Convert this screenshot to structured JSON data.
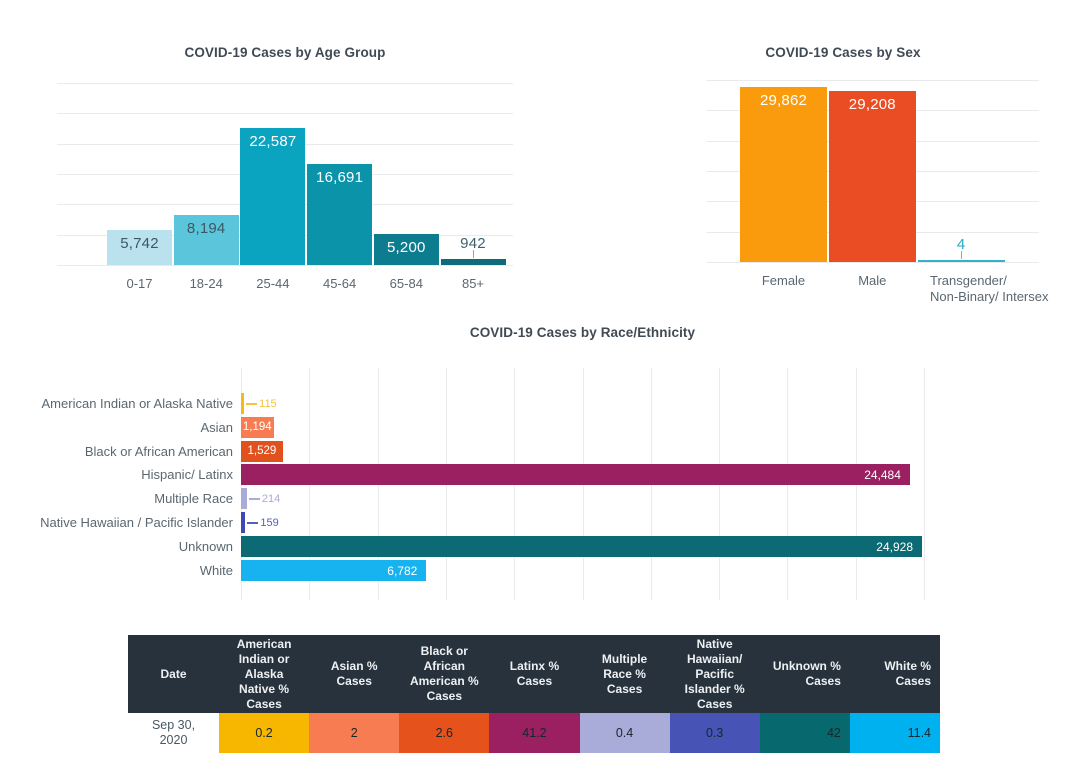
{
  "page_background": "#ffffff",
  "chart_data": [
    {
      "id": "age",
      "type": "bar",
      "orientation": "vertical",
      "title": "COVID-19 Cases by Age Group",
      "categories": [
        "0-17",
        "18-24",
        "25-44",
        "45-64",
        "65-84",
        "85+"
      ],
      "values": [
        5742,
        8194,
        22587,
        16691,
        5200,
        942
      ],
      "value_labels": [
        "5,742",
        "8,194",
        "22,587",
        "16,691",
        "5,200",
        "942"
      ],
      "bar_colors": [
        "#b9e2ee",
        "#5bc6db",
        "#0aa3c0",
        "#0b93a9",
        "#0d7c8f",
        "#0f6a7b"
      ],
      "value_label_colors": [
        "#3d5764",
        "#3d5764",
        "#ffffff",
        "#ffffff",
        "#ffffff",
        "#3d6170"
      ],
      "value_label_placement": [
        "inside-top",
        "inside-top",
        "inside-top",
        "inside-top",
        "inside-top",
        "above-leader"
      ],
      "xlabel": "",
      "ylabel": "",
      "ylim": [
        0,
        30000
      ],
      "grid": "horizontal gridlines every 5000, no axis tick labels",
      "legend": "none"
    },
    {
      "id": "sex",
      "type": "bar",
      "orientation": "vertical",
      "title": "COVID-19 Cases by Sex",
      "categories": [
        "Female",
        "Male",
        "Transgender/ Non-Binary/ Intersex"
      ],
      "category_label_lines": [
        [
          "Female"
        ],
        [
          "Male"
        ],
        [
          "Transgender/",
          "Non-Binary/ Intersex"
        ]
      ],
      "values": [
        29862,
        29208,
        4
      ],
      "value_labels": [
        "29,862",
        "29,208",
        "4"
      ],
      "bar_colors": [
        "#f99b0d",
        "#ea4d23",
        "#33b1cd"
      ],
      "value_label_colors": [
        "#ffffff",
        "#ffffff",
        "#2ba9c6"
      ],
      "value_label_placement": [
        "inside-top",
        "inside-top",
        "above-leader"
      ],
      "xlabel": "",
      "ylabel": "",
      "ylim": [
        0,
        30000
      ],
      "grid": "horizontal gridlines every 5000, no axis tick labels",
      "legend": "none"
    },
    {
      "id": "race",
      "type": "bar",
      "orientation": "horizontal",
      "title": "COVID-19 Cases by Race/Ethnicity",
      "categories": [
        "American Indian or Alaska Native",
        "Asian",
        "Black or African American",
        "Hispanic/ Latinx",
        "Multiple Race",
        "Native Hawaiian / Pacific Islander",
        "Unknown",
        "White"
      ],
      "values": [
        115,
        1194,
        1529,
        24484,
        214,
        159,
        24928,
        6782
      ],
      "value_labels": [
        "115",
        "1,194",
        "1,529",
        "24,484",
        "214",
        "159",
        "24,928",
        "6,782"
      ],
      "bar_colors": [
        "#f5b91c",
        "#f87c51",
        "#e1511e",
        "#9b2061",
        "#a9abd8",
        "#4049b2",
        "#0b6a74",
        "#16b3f0"
      ],
      "value_label_colors": [
        "#f6c33f",
        "#ffffff",
        "#ffffff",
        "#ffffff",
        "#a9abd8",
        "#5560ba",
        "#ffffff",
        "#ffffff"
      ],
      "value_label_placement": [
        "outside-leader",
        "inside-center",
        "inside-center",
        "inside-right",
        "outside-leader",
        "outside-leader",
        "inside-right",
        "inside-right"
      ],
      "xlabel": "",
      "ylabel": "",
      "xlim": [
        0,
        25000
      ],
      "grid": "vertical gridlines every 2500, no axis tick labels",
      "legend": "none"
    }
  ],
  "table": {
    "header_bg": "#28323c",
    "header_text_color": "#eef1f3",
    "columns": [
      {
        "label": "Date",
        "align": "center"
      },
      {
        "label": "American Indian or Alaska Native % Cases",
        "align": "center"
      },
      {
        "label": "Asian % Cases",
        "align": "center"
      },
      {
        "label": "Black or African American % Cases",
        "align": "center"
      },
      {
        "label": "Latinx % Cases",
        "align": "center"
      },
      {
        "label": "Multiple Race % Cases",
        "align": "center"
      },
      {
        "label": "Native Hawaiian/ Pacific Islander % Cases",
        "align": "center"
      },
      {
        "label": "Unknown % Cases",
        "align": "right"
      },
      {
        "label": "White % Cases",
        "align": "right"
      }
    ],
    "rows": [
      {
        "date": "Sep 30, 2020",
        "cells": [
          {
            "value": "0.2",
            "bg": "#f7b600",
            "align": "center"
          },
          {
            "value": "2",
            "bg": "#f87c51",
            "align": "center"
          },
          {
            "value": "2.6",
            "bg": "#e5521c",
            "align": "center"
          },
          {
            "value": "41.2",
            "bg": "#9b2061",
            "align": "center"
          },
          {
            "value": "0.4",
            "bg": "#a9abd8",
            "align": "center"
          },
          {
            "value": "0.3",
            "bg": "#4753b5",
            "align": "center"
          },
          {
            "value": "42",
            "bg": "#07696d",
            "align": "right"
          },
          {
            "value": "11.4",
            "bg": "#00b1f0",
            "align": "right"
          }
        ]
      }
    ]
  },
  "colors": {
    "grid": "#e8eaeb",
    "title": "#404a54",
    "axis_label": "#5b6770",
    "leader_line": "#9aa6ad",
    "cell_text": "#16262e",
    "date_text": "#4b5761"
  }
}
